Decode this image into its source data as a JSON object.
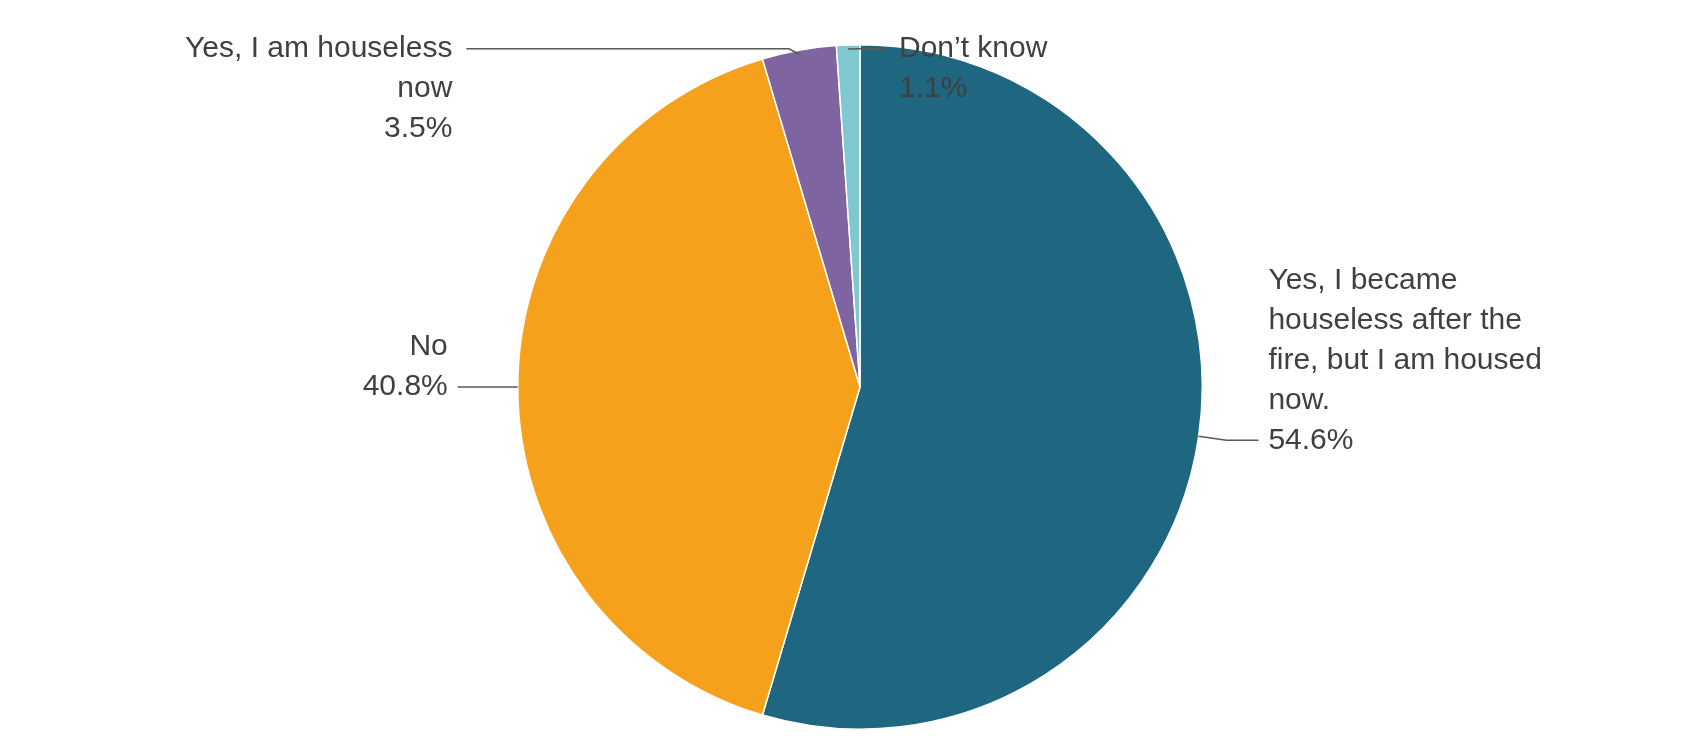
{
  "chart_data": {
    "type": "pie",
    "categories": [
      "Yes, I became houseless after the fire, but I am housed now.",
      "No",
      "Yes, I am houseless now",
      "Don’t know"
    ],
    "values": [
      54.6,
      40.8,
      3.5,
      1.1
    ],
    "value_labels": [
      "54.6%",
      "40.8%",
      "3.5%",
      "1.1%"
    ],
    "colors": [
      "#1f6680",
      "#f5a11c",
      "#7e64a0",
      "#7ec8cf"
    ],
    "legend": false
  }
}
